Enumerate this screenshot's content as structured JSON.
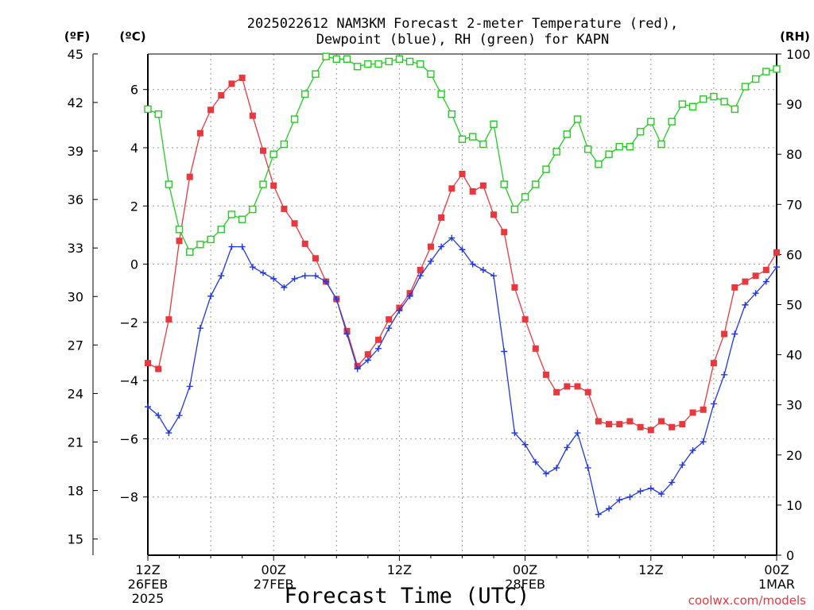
{
  "chart_data": {
    "type": "line",
    "title_line1": "2025022612 NAM3KM Forecast 2-meter Temperature (red),",
    "title_line2": "Dewpoint (blue), RH (green) for KAPN",
    "xlabel": "Forecast Time (UTC)",
    "left_outer_unit": "(ºF)",
    "left_inner_unit": "(ºC)",
    "right_unit": "(RH)",
    "credit": "coolwx.com/models",
    "colors": {
      "temperature": "#e8383d",
      "dewpoint": "#2038e0",
      "rh": "#22cc22"
    },
    "x_ticks": [
      {
        "hour": 0,
        "line1": "12Z",
        "line2": "26FEB",
        "line3": "2025"
      },
      {
        "hour": 12,
        "line1": "00Z",
        "line2": "27FEB",
        "line3": ""
      },
      {
        "hour": 24,
        "line1": "12Z",
        "line2": "",
        "line3": ""
      },
      {
        "hour": 36,
        "line1": "00Z",
        "line2": "28FEB",
        "line3": ""
      },
      {
        "hour": 48,
        "line1": "12Z",
        "line2": "",
        "line3": ""
      },
      {
        "hour": 60,
        "line1": "00Z",
        "line2": "1MAR",
        "line3": ""
      }
    ],
    "xlim": [
      0,
      60
    ],
    "ylim_c": [
      -10.0,
      7.22
    ],
    "ylim_rh": [
      0,
      100
    ],
    "f_ticks": [
      "15",
      "18",
      "21",
      "24",
      "27",
      "30",
      "33",
      "36",
      "39",
      "42",
      "45"
    ],
    "c_ticks": [
      "−8",
      "−6",
      "−4",
      "−2",
      "0",
      "2",
      "4",
      "6"
    ],
    "rh_ticks": [
      "0",
      "10",
      "20",
      "30",
      "40",
      "50",
      "60",
      "70",
      "80",
      "90",
      "100"
    ],
    "grid": true,
    "series": [
      {
        "key": "temperature",
        "marker": "filled-square",
        "values": [
          -3.4,
          -3.6,
          -1.9,
          0.8,
          3.0,
          4.5,
          5.3,
          5.8,
          6.2,
          6.4,
          5.1,
          3.9,
          2.7,
          1.9,
          1.4,
          0.7,
          0.2,
          -0.6,
          -1.2,
          -2.3,
          -3.5,
          -3.1,
          -2.6,
          -1.9,
          -1.5,
          -1.0,
          -0.2,
          0.6,
          1.6,
          2.6,
          3.1,
          2.5,
          2.7,
          1.7,
          1.1,
          -0.8,
          -1.9,
          -2.9,
          -3.8,
          -4.4,
          -4.2,
          -4.2,
          -4.4,
          -5.4,
          -5.5,
          -5.5,
          -5.4,
          -5.6,
          -5.7,
          -5.4,
          -5.6,
          -5.5,
          -5.1,
          -5.0,
          -3.4,
          -2.4,
          -0.8,
          -0.6,
          -0.4,
          -0.2,
          0.4
        ]
      },
      {
        "key": "dewpoint",
        "marker": "plus",
        "values": [
          -4.9,
          -5.2,
          -5.8,
          -5.2,
          -4.2,
          -2.2,
          -1.1,
          -0.4,
          0.6,
          0.6,
          -0.1,
          -0.3,
          -0.5,
          -0.8,
          -0.5,
          -0.4,
          -0.4,
          -0.6,
          -1.2,
          -2.4,
          -3.6,
          -3.3,
          -2.9,
          -2.2,
          -1.6,
          -1.1,
          -0.4,
          0.1,
          0.6,
          0.9,
          0.5,
          0.0,
          -0.2,
          -0.4,
          -3.0,
          -5.8,
          -6.2,
          -6.8,
          -7.2,
          -7.0,
          -6.3,
          -5.8,
          -7.0,
          -8.6,
          -8.4,
          -8.1,
          -8.0,
          -7.8,
          -7.7,
          -7.9,
          -7.5,
          -6.9,
          -6.4,
          -6.1,
          -4.8,
          -3.8,
          -2.4,
          -1.4,
          -1.0,
          -0.6,
          -0.1
        ]
      },
      {
        "key": "rh",
        "marker": "open-square",
        "values": [
          89,
          88,
          74,
          65,
          60.5,
          62,
          63,
          65,
          68,
          67,
          69,
          74,
          80,
          82,
          87,
          92,
          96,
          99.5,
          99,
          99,
          97.5,
          98,
          98,
          98.5,
          99,
          98.5,
          98,
          96,
          92,
          88,
          83,
          83.5,
          82,
          86,
          74,
          69,
          71.5,
          74,
          77,
          80.5,
          84,
          87,
          81,
          78,
          80,
          81.5,
          81.5,
          84.5,
          86.5,
          82,
          86.5,
          90,
          89.5,
          91,
          91.5,
          90.5,
          89,
          93.5,
          95,
          96.5,
          97
        ]
      }
    ]
  }
}
